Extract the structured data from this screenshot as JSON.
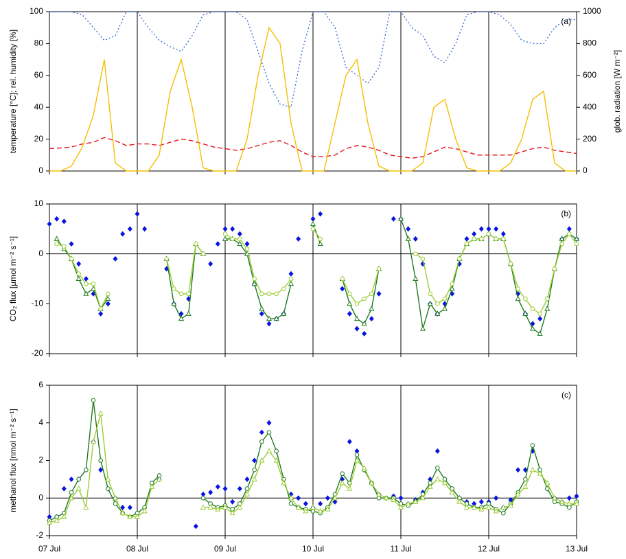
{
  "chart_data": [
    {
      "type": "line",
      "annotation": "(a)",
      "ylabel": "temperature [°C];  rel. humidity [%]",
      "y2label": "glob. radiation [W m⁻²]",
      "xlim": [
        7,
        13
      ],
      "xticks": [
        7,
        8,
        9,
        10,
        11,
        12,
        13
      ],
      "ylim": [
        0,
        100
      ],
      "yticks": [
        0,
        20,
        40,
        60,
        80,
        100
      ],
      "y2lim": [
        0,
        1000
      ],
      "y2ticks": [
        0,
        200,
        400,
        600,
        800,
        1000
      ],
      "x": [
        7,
        7.125,
        7.25,
        7.375,
        7.5,
        7.625,
        7.75,
        7.875,
        8,
        8.125,
        8.25,
        8.375,
        8.5,
        8.625,
        8.75,
        8.875,
        9,
        9.125,
        9.25,
        9.375,
        9.5,
        9.625,
        9.75,
        9.875,
        10,
        10.125,
        10.25,
        10.375,
        10.5,
        10.625,
        10.75,
        10.875,
        11,
        11.125,
        11.25,
        11.375,
        11.5,
        11.625,
        11.75,
        11.875,
        12,
        12.125,
        12.25,
        12.375,
        12.5,
        12.625,
        12.75,
        12.875,
        13
      ],
      "series": [
        {
          "color": "#3d6fd8",
          "style": "dotted",
          "values": [
            100,
            100,
            100,
            98,
            90,
            82,
            85,
            100,
            100,
            90,
            82,
            78,
            75,
            85,
            98,
            100,
            100,
            100,
            95,
            75,
            55,
            42,
            40,
            75,
            100,
            100,
            90,
            65,
            60,
            55,
            65,
            100,
            100,
            90,
            85,
            72,
            68,
            80,
            98,
            100,
            100,
            98,
            92,
            82,
            80,
            80,
            90,
            95,
            95
          ]
        },
        {
          "color": "#e8141e",
          "style": "dashed",
          "values": [
            14,
            14.5,
            15,
            17,
            18,
            21,
            19,
            16,
            17,
            17,
            16,
            18,
            20,
            19,
            17,
            15,
            14,
            13,
            14,
            16,
            18,
            19,
            16,
            12,
            9,
            9,
            10,
            14,
            16,
            15,
            13,
            10,
            9,
            8,
            9,
            12,
            15,
            14,
            12,
            10,
            10,
            10,
            10,
            12,
            14,
            15,
            13,
            12,
            11
          ]
        },
        {
          "color": "#f5be00",
          "style": "solid",
          "axis": "y2",
          "values": [
            0,
            0,
            30,
            150,
            350,
            700,
            50,
            0,
            0,
            0,
            100,
            500,
            700,
            400,
            20,
            0,
            0,
            0,
            200,
            600,
            900,
            800,
            300,
            0,
            0,
            0,
            300,
            600,
            700,
            300,
            30,
            0,
            0,
            0,
            50,
            400,
            450,
            200,
            20,
            0,
            0,
            0,
            50,
            200,
            450,
            500,
            50,
            0,
            0
          ]
        }
      ]
    },
    {
      "type": "line",
      "annotation": "(b)",
      "ylabel": "CO₂ flux [µmol m⁻² s⁻¹]",
      "xlim": [
        7,
        13
      ],
      "xticks": [
        7,
        8,
        9,
        10,
        11,
        12,
        13
      ],
      "ylim": [
        -20,
        10
      ],
      "yticks": [
        -20,
        -10,
        0,
        10
      ],
      "x": [
        7,
        7.0833,
        7.1667,
        7.25,
        7.3333,
        7.4167,
        7.5,
        7.5833,
        7.6667,
        7.75,
        7.8333,
        7.9167,
        8,
        8.0833,
        8.1667,
        8.25,
        8.3333,
        8.4167,
        8.5,
        8.5833,
        8.6667,
        8.75,
        8.8333,
        8.9167,
        9,
        9.0833,
        9.1667,
        9.25,
        9.3333,
        9.4167,
        9.5,
        9.5833,
        9.6667,
        9.75,
        9.8333,
        9.9167,
        10,
        10.0833,
        10.1667,
        10.25,
        10.3333,
        10.4167,
        10.5,
        10.5833,
        10.6667,
        10.75,
        10.8333,
        10.9167,
        11,
        11.0833,
        11.1667,
        11.25,
        11.3333,
        11.4167,
        11.5,
        11.5833,
        11.6667,
        11.75,
        11.8333,
        11.9167,
        12,
        12.0833,
        12.1667,
        12.25,
        12.3333,
        12.4167,
        12.5,
        12.5833,
        12.6667,
        12.75,
        12.8333,
        12.9167,
        13
      ],
      "series": [
        {
          "color": "#0a14e0",
          "marker": "diamond",
          "line": false,
          "values": [
            6,
            7,
            6.5,
            2,
            -2,
            -5,
            -8,
            -12,
            -10,
            -1,
            4,
            5,
            8,
            5,
            null,
            null,
            -3,
            -10,
            -12,
            -9,
            null,
            null,
            -2,
            2,
            5,
            5,
            4,
            2,
            -6,
            -12,
            -14,
            -13,
            -12,
            -4,
            3,
            null,
            7,
            8,
            null,
            null,
            -7,
            -12,
            -15,
            -16,
            -13,
            -8,
            null,
            7,
            7,
            5,
            3,
            -2,
            -10,
            -12,
            -10,
            -8,
            -2,
            3,
            4,
            5,
            5,
            5,
            4,
            -2,
            -8,
            -12,
            -14,
            -13,
            -9,
            -3,
            3,
            5,
            3
          ]
        },
        {
          "color": "#1e7a1e",
          "marker": "triangle",
          "values": [
            null,
            3,
            1,
            -1,
            -5,
            -8,
            -7,
            -11,
            -9,
            null,
            null,
            null,
            null,
            null,
            null,
            null,
            -1,
            -10,
            -13,
            -12,
            2,
            0,
            null,
            null,
            3,
            3,
            2,
            0,
            -6,
            -11,
            -13,
            -13,
            -12,
            -6,
            null,
            null,
            6,
            2,
            null,
            null,
            -5,
            -10,
            -13,
            -14,
            -11,
            -3,
            null,
            null,
            7,
            3,
            -5,
            -15,
            -10,
            -12,
            -11,
            -7,
            -1,
            2,
            3,
            3,
            4,
            3,
            3,
            -2,
            -9,
            -12,
            -15,
            -16,
            -11,
            -3,
            3,
            4,
            3
          ]
        },
        {
          "color": "#9acd32",
          "marker": "circle",
          "values": [
            null,
            2,
            1.5,
            -1,
            -4,
            -6,
            -6,
            -11,
            -8,
            null,
            null,
            null,
            null,
            null,
            null,
            null,
            -1,
            -7,
            -8,
            -8,
            2,
            0,
            null,
            null,
            4,
            3,
            3,
            1,
            -5,
            -8,
            -8,
            -8,
            -7,
            -5,
            null,
            null,
            5,
            3,
            null,
            null,
            -5,
            -8,
            -10,
            -9,
            -8,
            -3,
            null,
            null,
            null,
            null,
            0,
            -1,
            -8,
            -10,
            -9,
            -6,
            -1,
            2,
            3,
            3,
            4,
            3,
            3,
            -2,
            -7,
            -9,
            -11,
            -12,
            -9,
            -3,
            2,
            4,
            2
          ]
        }
      ]
    },
    {
      "type": "line",
      "annotation": "(c)",
      "ylabel": "methanol flux [nmol m⁻² s⁻¹]",
      "xlim": [
        7,
        13
      ],
      "xticks": [
        {
          "value": 7,
          "label": "07 Jul"
        },
        {
          "value": 8,
          "label": "08 Jul"
        },
        {
          "value": 9,
          "label": "09 Jul"
        },
        {
          "value": 10,
          "label": "10 Jul"
        },
        {
          "value": 11,
          "label": "11 Jul"
        },
        {
          "value": 12,
          "label": "12 Jul"
        },
        {
          "value": 13,
          "label": "13 Jul"
        }
      ],
      "ylim": [
        -2,
        6
      ],
      "yticks": [
        -2,
        0,
        2,
        4,
        6
      ],
      "x": [
        7,
        7.0833,
        7.1667,
        7.25,
        7.3333,
        7.4167,
        7.5,
        7.5833,
        7.6667,
        7.75,
        7.8333,
        7.9167,
        8,
        8.0833,
        8.1667,
        8.25,
        8.3333,
        8.4167,
        8.5,
        8.5833,
        8.6667,
        8.75,
        8.8333,
        8.9167,
        9,
        9.0833,
        9.1667,
        9.25,
        9.3333,
        9.4167,
        9.5,
        9.5833,
        9.6667,
        9.75,
        9.8333,
        9.9167,
        10,
        10.0833,
        10.1667,
        10.25,
        10.3333,
        10.4167,
        10.5,
        10.5833,
        10.6667,
        10.75,
        10.8333,
        10.9167,
        11,
        11.0833,
        11.1667,
        11.25,
        11.3333,
        11.4167,
        11.5,
        11.5833,
        11.6667,
        11.75,
        11.8333,
        11.9167,
        12,
        12.0833,
        12.1667,
        12.25,
        12.3333,
        12.4167,
        12.5,
        12.5833,
        12.6667,
        12.75,
        12.8333,
        12.9167,
        13
      ],
      "series": [
        {
          "color": "#0a14e0",
          "marker": "diamond",
          "line": false,
          "values": [
            -1,
            -1,
            0.5,
            1,
            1,
            1.5,
            3,
            1.5,
            0.5,
            0,
            -0.5,
            -0.5,
            -0.8,
            -0.5,
            0.8,
            1,
            null,
            null,
            null,
            null,
            -1.5,
            0.2,
            0.3,
            0.6,
            0.5,
            -0.2,
            0.5,
            1,
            2,
            3.5,
            4,
            2.5,
            1,
            0.2,
            0,
            -0.3,
            -0.5,
            -0.3,
            0,
            -0.2,
            1,
            3,
            2.5,
            1.5,
            0.8,
            0.2,
            0,
            0.1,
            0,
            -0.3,
            -0.1,
            0.3,
            1,
            2.5,
            1,
            0.5,
            0,
            -0.2,
            -0.3,
            -0.2,
            -0.2,
            0,
            -0.5,
            -0.1,
            1.5,
            1.5,
            2.5,
            1.5,
            0.5,
            0,
            -0.2,
            0,
            0.1
          ]
        },
        {
          "color": "#1e7a1e",
          "marker": "circle",
          "values": [
            -1.2,
            -1,
            -0.8,
            0.3,
            1,
            1.5,
            5.2,
            2,
            0.5,
            -0.3,
            -0.8,
            -1,
            -0.8,
            -0.5,
            0.8,
            1.2,
            null,
            null,
            null,
            null,
            null,
            0,
            -0.3,
            -0.5,
            -0.4,
            -0.6,
            -0.3,
            0.5,
            1.5,
            3,
            3.5,
            2.5,
            1,
            -0.3,
            -0.5,
            -0.6,
            -0.7,
            -0.8,
            -0.5,
            0.2,
            1.3,
            0.8,
            2.3,
            1.5,
            0.8,
            0,
            0,
            0,
            -0.3,
            -0.4,
            -0.2,
            0.2,
            0.8,
            1.6,
            1,
            0.5,
            0,
            -0.3,
            -0.5,
            -0.5,
            -0.3,
            -0.6,
            -0.8,
            -0.3,
            0.3,
            1,
            2.8,
            1.5,
            0.5,
            -0.2,
            -0.3,
            -0.5,
            -0.2
          ]
        },
        {
          "color": "#9acd32",
          "marker": "triangle",
          "values": [
            -1.3,
            -1.2,
            -1,
            0,
            0.5,
            -0.5,
            3,
            4.5,
            1,
            0,
            -0.8,
            -1,
            -1,
            -0.7,
            0.6,
            1,
            null,
            null,
            null,
            null,
            null,
            -0.5,
            -0.5,
            -0.6,
            -0.5,
            -0.8,
            -0.5,
            0.2,
            1,
            2,
            2.5,
            2,
            0.8,
            0,
            -0.5,
            -0.7,
            -0.5,
            -0.7,
            -0.6,
            0,
            0.8,
            0.5,
            2,
            1.6,
            0.8,
            0.2,
            0,
            -0.1,
            -0.5,
            -0.3,
            -0.2,
            0,
            0.6,
            1,
            0.8,
            0.3,
            -0.2,
            -0.5,
            -0.5,
            -0.6,
            -0.5,
            -0.7,
            -0.5,
            -0.4,
            0.2,
            0.6,
            1.5,
            1.3,
            0.8,
            0,
            -0.2,
            -0.3,
            -0.3
          ]
        }
      ]
    }
  ]
}
